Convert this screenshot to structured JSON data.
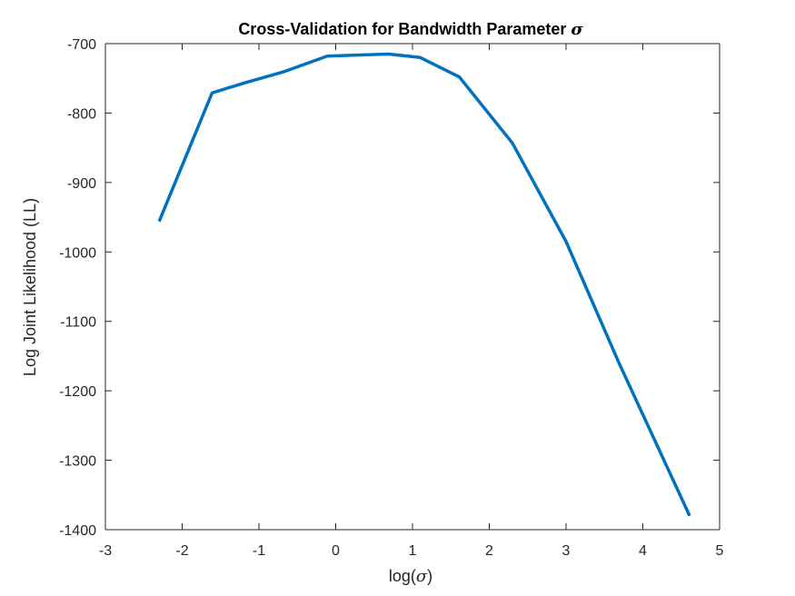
{
  "chart_data": {
    "type": "line",
    "title": "Cross-Validation for Bandwidth Parameter ",
    "title_symbol": "σ",
    "xlabel_prefix": "log(",
    "xlabel_symbol": "σ",
    "xlabel_suffix": ")",
    "ylabel": "Log Joint Likelihood (LL)",
    "xlim": [
      -3,
      5
    ],
    "ylim": [
      -1400,
      -700
    ],
    "xticks": [
      -3,
      -2,
      -1,
      0,
      1,
      2,
      3,
      4,
      5
    ],
    "yticks": [
      -700,
      -800,
      -900,
      -1000,
      -1100,
      -1200,
      -1300,
      -1400
    ],
    "grid": false,
    "series": [
      {
        "color": "#0072BD",
        "x": [
          -2.3,
          -1.61,
          -1.2,
          -0.69,
          -0.11,
          0.69,
          1.1,
          1.61,
          2.3,
          3.0,
          3.69,
          4.61
        ],
        "y": [
          -956,
          -771,
          -757,
          -741,
          -718,
          -715,
          -720,
          -748,
          -843,
          -985,
          -1160,
          -1380
        ]
      }
    ]
  }
}
